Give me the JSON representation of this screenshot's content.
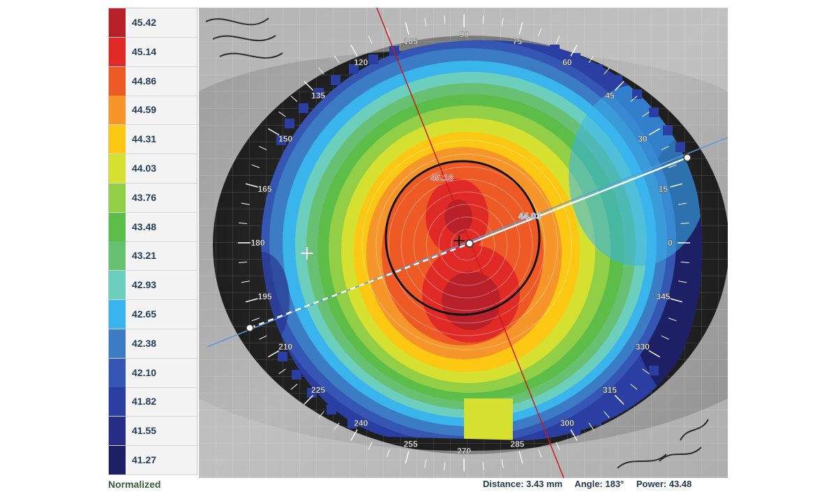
{
  "legend": {
    "title": "Normalized",
    "items": [
      {
        "value": "45.42",
        "color": "#b8202a"
      },
      {
        "value": "45.14",
        "color": "#e02a26"
      },
      {
        "value": "44.86",
        "color": "#ee5a26"
      },
      {
        "value": "44.59",
        "color": "#f6962a"
      },
      {
        "value": "44.31",
        "color": "#fcc814"
      },
      {
        "value": "44.03",
        "color": "#d6e030"
      },
      {
        "value": "43.76",
        "color": "#92cf46"
      },
      {
        "value": "43.48",
        "color": "#5cbd48"
      },
      {
        "value": "43.21",
        "color": "#68c072"
      },
      {
        "value": "42.93",
        "color": "#6ccfbe"
      },
      {
        "value": "42.65",
        "color": "#3ab4ec"
      },
      {
        "value": "42.38",
        "color": "#3b7cc4"
      },
      {
        "value": "42.10",
        "color": "#3556b2"
      },
      {
        "value": "41.82",
        "color": "#2b3fa2"
      },
      {
        "value": "41.55",
        "color": "#262e86"
      },
      {
        "value": "41.27",
        "color": "#1d2064"
      }
    ]
  },
  "map": {
    "angle_labels": [
      "0",
      "15",
      "30",
      "45",
      "60",
      "75",
      "90",
      "105",
      "120",
      "135",
      "150",
      "165",
      "180",
      "195",
      "210",
      "225",
      "240",
      "255",
      "270",
      "285",
      "300",
      "315",
      "330",
      "345"
    ],
    "steep_k_label": "45.16",
    "flat_k_label": "44.03",
    "steep_k_color": "#d62020",
    "flat_k_color": "#5a9ad8"
  },
  "status": {
    "distance": "Distance: 3.43 mm",
    "angle": "Angle: 183°",
    "power": "Power: 43.48"
  }
}
